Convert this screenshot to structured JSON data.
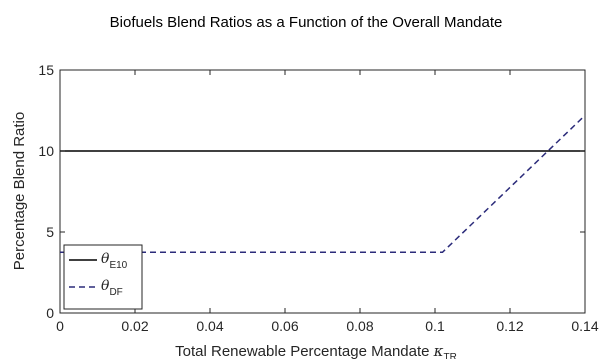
{
  "chart_data": {
    "type": "line",
    "title": "Biofuels Blend Ratios as a Function of the Overall Mandate",
    "xlabel_main": "Total Renewable Percentage Mandate ",
    "xlabel_symbol": "κ",
    "xlabel_sub": "TR",
    "ylabel": "Percentage Blend Ratio",
    "xlim": [
      0,
      0.14
    ],
    "ylim": [
      0,
      15
    ],
    "xticks": [
      0,
      0.02,
      0.04,
      0.06,
      0.08,
      0.1,
      0.12,
      0.14
    ],
    "xtick_labels": [
      "0",
      "0.02",
      "0.04",
      "0.06",
      "0.08",
      "0.1",
      "0.12",
      "0.14"
    ],
    "yticks": [
      0,
      5,
      10,
      15
    ],
    "ytick_labels": [
      "0",
      "5",
      "10",
      "15"
    ],
    "grid": false,
    "legend_position": "bottom-left",
    "series": [
      {
        "symbol": "θ",
        "subscript": "E10",
        "style": "solid",
        "color": "#000000",
        "x": [
          0,
          0.14
        ],
        "y": [
          10,
          10
        ]
      },
      {
        "symbol": "θ",
        "subscript": "DF",
        "style": "dashed",
        "color": "#2b2b7a",
        "x": [
          0,
          0.102,
          0.14
        ],
        "y": [
          3.75,
          3.75,
          12.2
        ]
      }
    ]
  }
}
